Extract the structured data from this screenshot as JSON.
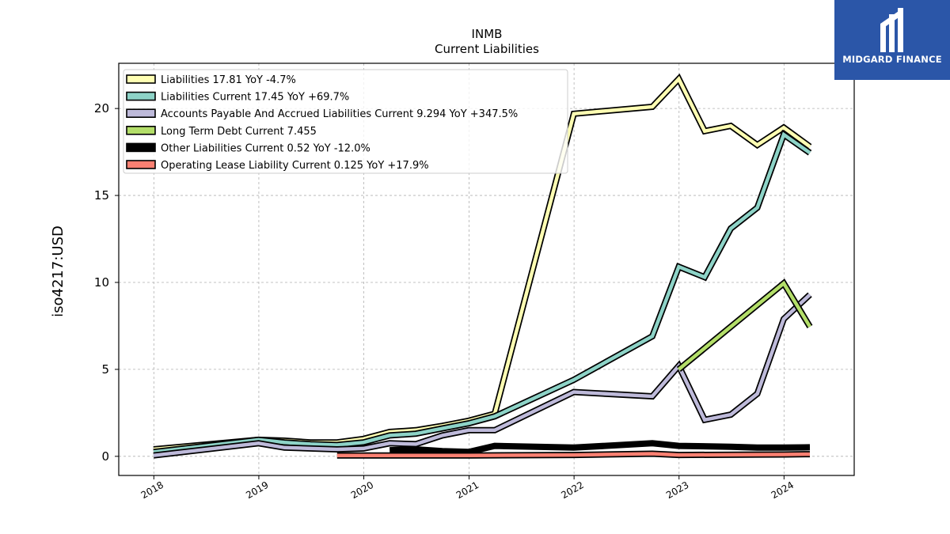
{
  "title_line1": "INMB",
  "title_line2": "Current  Liabilities",
  "logo": {
    "text": "MIDGARD FINANCE",
    "color": "#2b56a8"
  },
  "chart_data": {
    "type": "line",
    "ylabel": "iso4217:USD",
    "xlabel": "",
    "x_ticks": [
      "2018",
      "2019",
      "2020",
      "2021",
      "2022",
      "2023",
      "2024"
    ],
    "y_ticks": [
      "0",
      "5",
      "10",
      "15",
      "20"
    ],
    "xlim": [
      "2017-09-01",
      "2024-09-01"
    ],
    "ylim": [
      -1.1,
      22.6
    ],
    "grid": true,
    "legend_position": "top-left",
    "series": [
      {
        "name": "Liabilities  17.81 YoY -4.7%",
        "color": "#ffffb3",
        "points": [
          [
            "2017-12-31",
            0.4
          ],
          [
            "2018-12-31",
            0.95
          ],
          [
            "2019-03-31",
            0.9
          ],
          [
            "2019-06-30",
            0.8
          ],
          [
            "2019-09-30",
            0.8
          ],
          [
            "2019-12-31",
            1.0
          ],
          [
            "2020-03-31",
            1.4
          ],
          [
            "2020-06-30",
            1.5
          ],
          [
            "2020-09-30",
            1.75
          ],
          [
            "2020-12-31",
            2.05
          ],
          [
            "2021-03-31",
            2.45
          ],
          [
            "2021-12-31",
            19.7
          ],
          [
            "2022-09-30",
            20.1
          ],
          [
            "2022-12-31",
            21.7
          ],
          [
            "2023-03-31",
            18.7
          ],
          [
            "2023-06-30",
            19.0
          ],
          [
            "2023-09-30",
            17.9
          ],
          [
            "2023-12-31",
            18.9
          ],
          [
            "2024-03-31",
            17.81
          ]
        ]
      },
      {
        "name": "Liabilities Current  17.45 YoY +69.7%",
        "color": "#8dd3c7",
        "points": [
          [
            "2017-12-31",
            0.25
          ],
          [
            "2018-12-31",
            0.95
          ],
          [
            "2019-03-31",
            0.8
          ],
          [
            "2019-06-30",
            0.7
          ],
          [
            "2019-09-30",
            0.65
          ],
          [
            "2019-12-31",
            0.8
          ],
          [
            "2020-03-31",
            1.2
          ],
          [
            "2020-06-30",
            1.3
          ],
          [
            "2020-09-30",
            1.6
          ],
          [
            "2020-12-31",
            1.9
          ],
          [
            "2021-03-31",
            2.3
          ],
          [
            "2021-12-31",
            4.4
          ],
          [
            "2022-09-30",
            6.9
          ],
          [
            "2022-12-31",
            10.9
          ],
          [
            "2023-03-31",
            10.3
          ],
          [
            "2023-06-30",
            13.1
          ],
          [
            "2023-09-30",
            14.3
          ],
          [
            "2023-12-31",
            18.5
          ],
          [
            "2024-03-31",
            17.45
          ]
        ]
      },
      {
        "name": "Accounts Payable And Accrued Liabilities Current  9.294 YoY +347.5%",
        "color": "#bebada",
        "points": [
          [
            "2017-12-31",
            0.05
          ],
          [
            "2018-12-31",
            0.75
          ],
          [
            "2019-03-31",
            0.5
          ],
          [
            "2019-06-30",
            0.45
          ],
          [
            "2019-09-30",
            0.4
          ],
          [
            "2019-12-31",
            0.45
          ],
          [
            "2020-03-31",
            0.75
          ],
          [
            "2020-06-30",
            0.7
          ],
          [
            "2020-09-30",
            1.2
          ],
          [
            "2020-12-31",
            1.5
          ],
          [
            "2021-03-31",
            1.5
          ],
          [
            "2021-12-31",
            3.7
          ],
          [
            "2022-09-30",
            3.45
          ],
          [
            "2022-12-31",
            5.2
          ],
          [
            "2023-03-31",
            2.1
          ],
          [
            "2023-06-30",
            2.4
          ],
          [
            "2023-09-30",
            3.6
          ],
          [
            "2023-12-31",
            7.9
          ],
          [
            "2024-03-31",
            9.294
          ]
        ]
      },
      {
        "name": "Long Term Debt Current  7.455",
        "color": "#b3de69",
        "points": [
          [
            "2022-12-31",
            5.0
          ],
          [
            "2023-12-31",
            9.95
          ],
          [
            "2024-03-31",
            7.455
          ]
        ]
      },
      {
        "name": "Other Liabilities Current  0.52 YoY -12.0%",
        "color": "#000000",
        "points": [
          [
            "2020-03-31",
            0.35
          ],
          [
            "2020-06-30",
            0.4
          ],
          [
            "2020-09-30",
            0.3
          ],
          [
            "2020-12-31",
            0.25
          ],
          [
            "2021-03-31",
            0.6
          ],
          [
            "2021-12-31",
            0.5
          ],
          [
            "2022-09-30",
            0.75
          ],
          [
            "2022-12-31",
            0.6
          ],
          [
            "2023-06-30",
            0.55
          ],
          [
            "2023-09-30",
            0.5
          ],
          [
            "2023-12-31",
            0.5
          ],
          [
            "2024-03-31",
            0.52
          ]
        ]
      },
      {
        "name": "Operating Lease Liability Current  0.125 YoY +17.9%",
        "color": "#fb8072",
        "points": [
          [
            "2019-09-30",
            0.05
          ],
          [
            "2020-12-31",
            0.05
          ],
          [
            "2021-12-31",
            0.08
          ],
          [
            "2022-09-30",
            0.15
          ],
          [
            "2022-12-31",
            0.08
          ],
          [
            "2023-09-30",
            0.1
          ],
          [
            "2023-12-31",
            0.106
          ],
          [
            "2024-03-31",
            0.125
          ]
        ]
      }
    ]
  }
}
